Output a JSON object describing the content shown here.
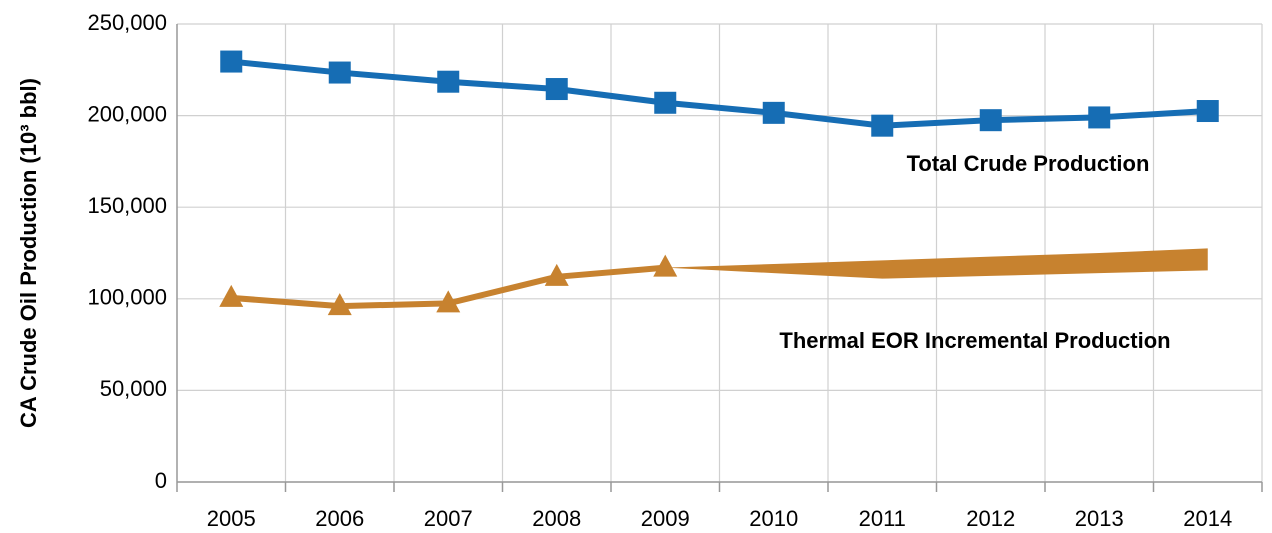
{
  "chart_data": {
    "type": "line",
    "ylabel": "CA Crude Oil Production (10³ bbl)",
    "categories": [
      "2005",
      "2006",
      "2007",
      "2008",
      "2009",
      "2010",
      "2011",
      "2012",
      "2013",
      "2014"
    ],
    "ylim": [
      0,
      250000
    ],
    "yticks": [
      0,
      {
        "value": 50000,
        "label": "50,000"
      },
      {
        "value": 100000,
        "label": "100,000"
      },
      {
        "value": 150000,
        "label": "150,000"
      },
      {
        "value": 200000,
        "label": "200,000"
      },
      {
        "value": 250000,
        "label": "250,000"
      }
    ],
    "grid": true,
    "series": [
      {
        "name": "Total Crude Production",
        "color": "#166db4",
        "marker": "square",
        "values": [
          229500,
          223500,
          218500,
          214500,
          207000,
          201500,
          194500,
          197500,
          199000,
          202500
        ]
      },
      {
        "name": "Thermal EOR Incremental Production",
        "color": "#c7822f",
        "marker": "triangle",
        "values": [
          100500,
          96000,
          97500,
          112000,
          117000,
          null,
          null,
          null,
          null,
          null
        ],
        "band": {
          "high": [
            null,
            null,
            null,
            null,
            117000,
            119000,
            121000,
            123000,
            125000,
            127500
          ],
          "low": [
            null,
            null,
            null,
            null,
            117000,
            114000,
            111000,
            112500,
            114000,
            115500
          ]
        }
      }
    ]
  }
}
